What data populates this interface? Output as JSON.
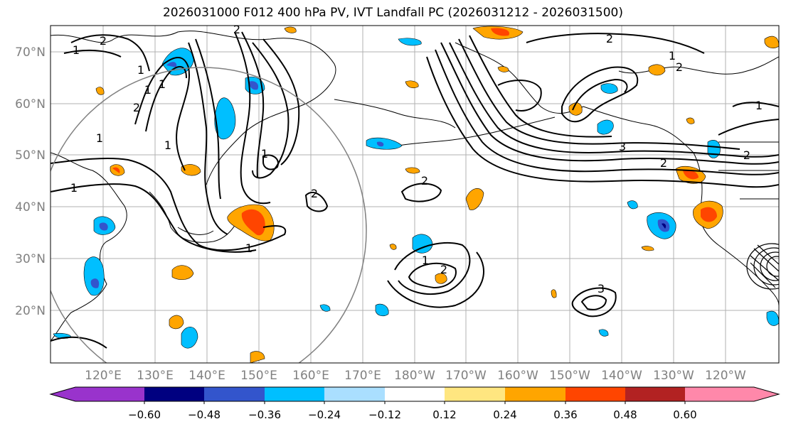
{
  "title": "2026031000 F012 400 hPa PV, IVT Landfall PC (2026031212 - 2026031500)",
  "map": {
    "lat_labels": [
      "70°N",
      "60°N",
      "50°N",
      "40°N",
      "30°N",
      "20°N"
    ],
    "lon_labels": [
      "120°E",
      "130°E",
      "140°E",
      "150°E",
      "160°E",
      "170°E",
      "180°W",
      "170°W",
      "160°W",
      "150°W",
      "140°W",
      "130°W",
      "120°W"
    ],
    "contour_labels": [
      "1",
      "2",
      "1",
      "1",
      "2",
      "1",
      "2",
      "1",
      "1",
      "1",
      "2",
      "1",
      "2",
      "1",
      "2",
      "3",
      "2",
      "2",
      "1",
      "3",
      "2",
      "2",
      "1",
      "1"
    ]
  },
  "colorbar": {
    "colors": [
      "#9933cc",
      "#000080",
      "#3355cc",
      "#00bfff",
      "#aadfff",
      "#ffffff",
      "#ffe680",
      "#ffa500",
      "#ff4500",
      "#b22222",
      "#ff88aa"
    ],
    "tick_labels": [
      "−0.60",
      "−0.48",
      "−0.36",
      "−0.24",
      "−0.12",
      "0.12",
      "0.24",
      "0.36",
      "0.48",
      "0.60"
    ]
  }
}
